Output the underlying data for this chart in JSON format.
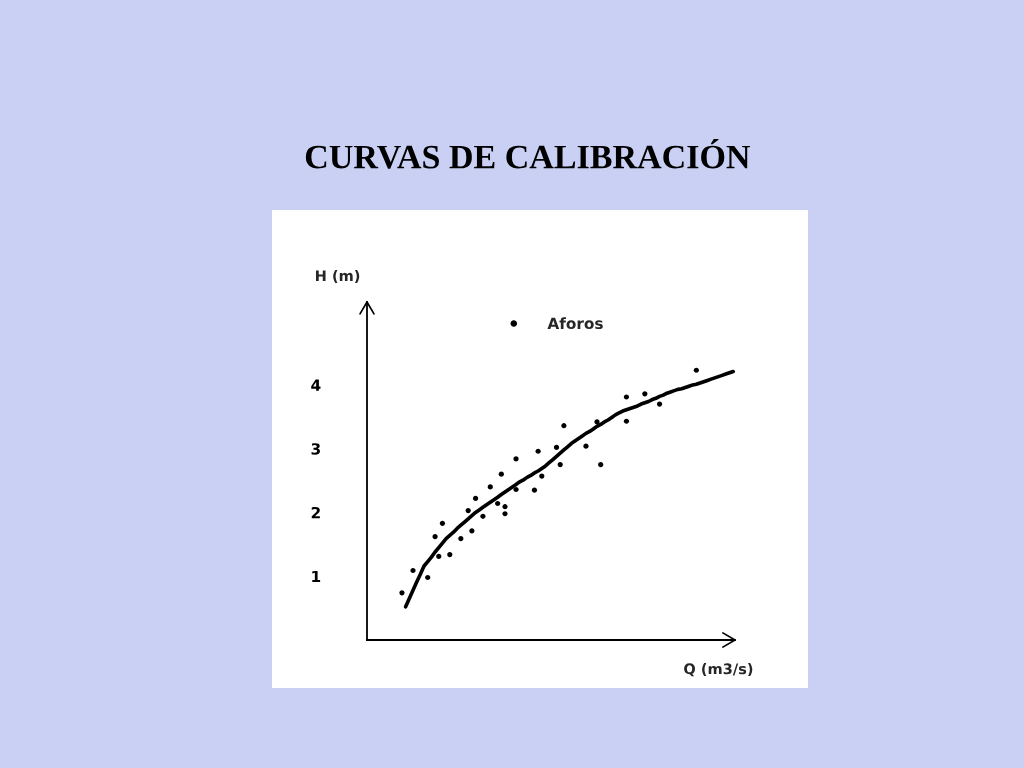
{
  "chart_data": {
    "type": "scatter",
    "title": "CURVAS DE CALIBRACIÓN",
    "xlabel": "Q (m3/s)",
    "ylabel": "H (m)",
    "categories": [
      null,
      null,
      null,
      null,
      null,
      null,
      null,
      null,
      null,
      null,
      null,
      null,
      null,
      null,
      null,
      null,
      null,
      null,
      null,
      null,
      null,
      null,
      null,
      null,
      null,
      null,
      null,
      null,
      null,
      null,
      null,
      null,
      null,
      null,
      null,
      null,
      null,
      null,
      null,
      null,
      null,
      null,
      null,
      null,
      null,
      null,
      null,
      null,
      null,
      null,
      null,
      null,
      null,
      null,
      null,
      null,
      null,
      null,
      null,
      null,
      null,
      null,
      null,
      null,
      null,
      null,
      null,
      null,
      null,
      null,
      null,
      null,
      null,
      null,
      null,
      null,
      null,
      null,
      null,
      null,
      null,
      null,
      null,
      null,
      null,
      null,
      null,
      null,
      null,
      null,
      null,
      null,
      null,
      null,
      null,
      null,
      null,
      null,
      null,
      null
    ],
    "ylim": [
      0,
      5.3
    ],
    "yticks": [
      1,
      2,
      3,
      4
    ],
    "grid": false,
    "legend": "top",
    "series": [
      {
        "name": "Aforos",
        "color": "#000000",
        "marker": "circle",
        "values": [
          null,
          null,
          null,
          null,
          null,
          null,
          null,
          null,
          null,
          0.74,
          null,
          null,
          1.09,
          null,
          null,
          null,
          0.98,
          null,
          1.62,
          1.31,
          1.83,
          null,
          1.34,
          null,
          null,
          1.59,
          null,
          2.03,
          1.71,
          2.22,
          null,
          1.94,
          null,
          2.4,
          null,
          2.14,
          2.6,
          2.09,
          null,
          null,
          2.84,
          null,
          null,
          null,
          null,
          2.35,
          2.96,
          2.57,
          null,
          null,
          null,
          3.02,
          2.75,
          3.36,
          null,
          null,
          null,
          null,
          null,
          3.04,
          null,
          null,
          3.42,
          2.75,
          null,
          null,
          null,
          null,
          null,
          null,
          3.81,
          null,
          null,
          null,
          null,
          3.86,
          null,
          null,
          null,
          3.7,
          null,
          null,
          null,
          null,
          null,
          null,
          null,
          null,
          null,
          4.23,
          null,
          null,
          null,
          null,
          null,
          null,
          null,
          null,
          null,
          null
        ]
      },
      {
        "color": "#000000",
        "marker": "circle",
        "values": [
          null,
          null,
          null,
          null,
          null,
          null,
          null,
          null,
          null,
          null,
          null,
          null,
          null,
          null,
          null,
          null,
          null,
          null,
          null,
          null,
          null,
          null,
          null,
          null,
          null,
          null,
          null,
          null,
          null,
          null,
          null,
          null,
          null,
          null,
          null,
          null,
          null,
          1.98,
          null,
          null,
          2.36,
          null,
          null,
          null,
          null,
          null,
          null,
          null,
          null,
          null,
          null,
          null,
          null,
          null,
          null,
          null,
          null,
          null,
          null,
          null,
          null,
          null,
          null,
          null,
          null,
          null,
          null,
          null,
          null,
          null,
          3.43,
          null,
          null,
          null,
          null,
          null,
          null,
          null,
          null,
          null,
          null,
          null,
          null,
          null,
          null,
          null,
          null,
          null,
          null,
          null,
          null,
          null,
          null,
          null,
          null,
          null,
          null,
          null,
          null,
          null
        ]
      },
      {
        "type": "line",
        "color": "#000000",
        "values": [
          null,
          null,
          null,
          null,
          null,
          null,
          null,
          null,
          null,
          null,
          0.52,
          0.65,
          0.78,
          0.91,
          1.03,
          1.16,
          1.23,
          1.3,
          1.38,
          1.45,
          1.52,
          1.59,
          1.64,
          1.69,
          1.75,
          1.8,
          1.85,
          1.9,
          1.95,
          2.0,
          2.04,
          2.08,
          2.12,
          2.16,
          2.2,
          2.24,
          2.28,
          2.32,
          2.36,
          2.4,
          2.44,
          2.48,
          2.51,
          2.55,
          2.58,
          2.62,
          2.65,
          2.69,
          2.73,
          2.78,
          2.83,
          2.88,
          2.93,
          2.98,
          3.03,
          3.08,
          3.12,
          3.16,
          3.2,
          3.24,
          3.27,
          3.31,
          3.35,
          3.38,
          3.42,
          3.45,
          3.49,
          3.53,
          3.56,
          3.59,
          3.61,
          3.63,
          3.65,
          3.67,
          3.7,
          3.72,
          3.74,
          3.77,
          3.79,
          3.82,
          3.84,
          3.87,
          3.89,
          3.91,
          3.93,
          3.94,
          3.96,
          3.98,
          4.0,
          4.01,
          4.03,
          4.05,
          4.07,
          4.09,
          4.11,
          4.13,
          4.15,
          4.17,
          4.19,
          4.21
        ]
      }
    ]
  }
}
